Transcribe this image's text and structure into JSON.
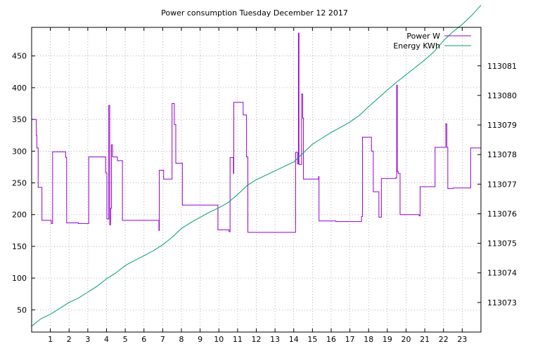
{
  "chart_data": {
    "type": "line",
    "title": "Power consumption Tuesday December 12 2017",
    "xlabel": "",
    "ylabel": "",
    "xlim": [
      0,
      24
    ],
    "ylim": [
      15,
      495
    ],
    "y2lim": [
      113072.0,
      113082.3
    ],
    "x_ticks": [
      1,
      2,
      3,
      4,
      5,
      6,
      7,
      8,
      9,
      10,
      11,
      12,
      13,
      14,
      15,
      16,
      17,
      18,
      19,
      20,
      21,
      22,
      23
    ],
    "y_ticks": [
      50,
      100,
      150,
      200,
      250,
      300,
      350,
      400,
      450
    ],
    "y2_ticks": [
      113073,
      113074,
      113075,
      113076,
      113077,
      113078,
      113079,
      113080,
      113081
    ],
    "grid": true,
    "legend_position": "top-right",
    "series": [
      {
        "name": "Power W",
        "axis": "left",
        "color": "#9400d3",
        "x": [
          0,
          0.25,
          0.25,
          0.28,
          0.28,
          0.35,
          0.35,
          0.55,
          0.55,
          1.05,
          1.05,
          1.12,
          1.12,
          1.82,
          1.82,
          1.87,
          1.87,
          2.5,
          2.5,
          3.05,
          3.05,
          3.95,
          3.95,
          4.02,
          4.02,
          4.12,
          4.12,
          4.17,
          4.17,
          4.22,
          4.22,
          4.26,
          4.26,
          4.32,
          4.32,
          4.58,
          4.58,
          4.85,
          4.85,
          4.9,
          4.9,
          6.8,
          6.8,
          6.82,
          6.82,
          7.05,
          7.05,
          7.5,
          7.5,
          7.62,
          7.62,
          7.7,
          7.7,
          8.05,
          8.05,
          9.95,
          9.95,
          10.55,
          10.55,
          10.6,
          10.6,
          10.78,
          10.78,
          10.8,
          10.8,
          11.3,
          11.3,
          11.48,
          11.48,
          11.55,
          11.55,
          14.1,
          14.1,
          14.2,
          14.2,
          14.25,
          14.25,
          14.28,
          14.28,
          14.42,
          14.42,
          14.48,
          14.48,
          14.52,
          14.52,
          15.3,
          15.3,
          15.33,
          15.33,
          15.35,
          15.35,
          16.25,
          16.25,
          17.62,
          17.62,
          17.67,
          17.67,
          18.15,
          18.15,
          18.25,
          18.25,
          18.55,
          18.55,
          18.68,
          18.68,
          19.45,
          19.45,
          19.5,
          19.5,
          19.53,
          19.53,
          19.58,
          19.58,
          19.68,
          19.68,
          20.7,
          20.7,
          20.75,
          20.75,
          21.55,
          21.55,
          22.12,
          22.12,
          22.18,
          22.18,
          22.23,
          22.23,
          22.5,
          22.5,
          23.45,
          23.45,
          24
        ],
        "y": [
          350,
          350,
          325,
          325,
          305,
          305,
          243,
          243,
          191,
          191,
          186,
          186,
          299,
          299,
          290,
          290,
          187,
          187,
          186,
          186,
          291,
          291,
          266,
          266,
          193,
          193,
          372,
          372,
          184,
          184,
          210,
          210,
          310,
          310,
          291,
          291,
          285,
          285,
          191,
          191,
          191,
          191,
          175,
          175,
          270,
          270,
          256,
          256,
          375,
          375,
          342,
          342,
          281,
          281,
          215,
          215,
          176,
          176,
          173,
          173,
          290,
          290,
          265,
          265,
          377,
          377,
          357,
          357,
          291,
          291,
          172,
          172,
          298,
          298,
          280,
          280,
          486,
          486,
          279,
          279,
          390,
          390,
          352,
          352,
          256,
          256,
          256,
          256,
          260,
          260,
          190,
          190,
          189,
          189,
          197,
          197,
          322,
          322,
          300,
          300,
          236,
          236,
          196,
          196,
          257,
          257,
          258,
          258,
          404,
          404,
          268,
          268,
          265,
          265,
          200,
          200,
          198,
          198,
          244,
          244,
          306,
          306,
          343,
          343,
          306,
          306,
          241,
          241,
          242,
          242,
          305,
          305
        ]
      },
      {
        "name": "Energy KWh",
        "axis": "right",
        "color": "#009e73",
        "x": [
          0,
          0.5,
          1.0,
          1.5,
          2.0,
          2.5,
          3.0,
          3.5,
          4.0,
          4.5,
          5.0,
          5.5,
          6.0,
          6.5,
          7.0,
          7.5,
          8.0,
          8.5,
          9.0,
          9.5,
          10.0,
          10.5,
          11.0,
          11.5,
          12.0,
          12.5,
          13.0,
          13.5,
          14.0,
          14.5,
          15.0,
          15.5,
          16.0,
          16.5,
          17.0,
          17.5,
          18.0,
          18.5,
          19.0,
          19.5,
          20.0,
          20.5,
          21.0,
          21.5,
          22.0,
          22.5,
          23.0,
          23.5,
          24.0
        ],
        "y": [
          113072.2,
          113072.45,
          113072.6,
          113072.8,
          113073.0,
          113073.15,
          113073.35,
          113073.55,
          113073.8,
          113074.0,
          113074.25,
          113074.42,
          113074.58,
          113074.75,
          113074.95,
          113075.2,
          113075.5,
          113075.7,
          113075.88,
          113076.05,
          113076.2,
          113076.38,
          113076.65,
          113076.95,
          113077.15,
          113077.3,
          113077.45,
          113077.6,
          113077.75,
          113078.05,
          113078.35,
          113078.55,
          113078.75,
          113078.92,
          113079.1,
          113079.32,
          113079.62,
          113079.9,
          113080.18,
          113080.45,
          113080.7,
          113080.95,
          113081.2,
          113081.48,
          113081.85,
          113082.15,
          113082.4,
          113082.7,
          113083.05
        ]
      }
    ]
  }
}
